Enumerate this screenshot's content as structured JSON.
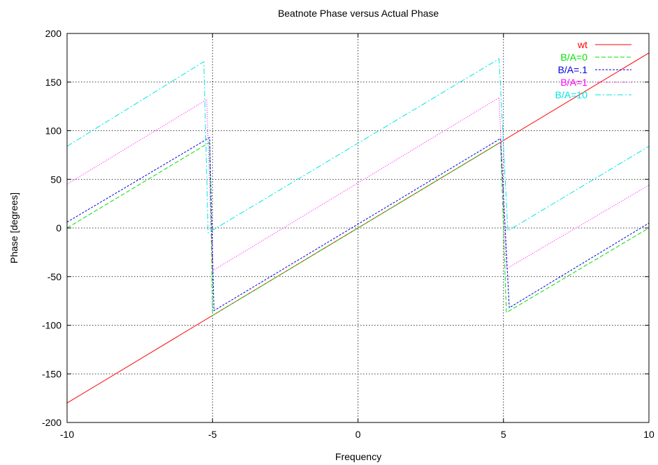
{
  "chart_data": {
    "type": "line",
    "title": "Beatnote Phase versus Actual Phase",
    "xlabel": "Frequency",
    "ylabel": "Phase [degrees]",
    "xlim": [
      -10,
      10
    ],
    "ylim": [
      -200,
      200
    ],
    "xticks": [
      -10,
      -5,
      0,
      5,
      10
    ],
    "yticks": [
      -200,
      -150,
      -100,
      -50,
      0,
      50,
      100,
      150,
      200
    ],
    "grid": true,
    "legend_position": "top-right",
    "series": [
      {
        "name": "wt",
        "color": "#ff0000",
        "dash": "solid",
        "points": [
          [
            -10,
            -180
          ],
          [
            10,
            180
          ]
        ]
      },
      {
        "name": "B/A=0",
        "color": "#00e000",
        "dash": "dashed",
        "points": [
          [
            -10,
            0
          ],
          [
            -5.1,
            88
          ],
          [
            -5.0,
            -90
          ],
          [
            4.9,
            88
          ],
          [
            5.1,
            -87
          ],
          [
            10,
            0
          ]
        ]
      },
      {
        "name": "B/A=.1",
        "color": "#0000e0",
        "dash": "short-dashed",
        "points": [
          [
            -10,
            6
          ],
          [
            -5.1,
            93
          ],
          [
            -4.95,
            -85
          ],
          [
            4.9,
            92
          ],
          [
            5.2,
            -82
          ],
          [
            10,
            5
          ]
        ]
      },
      {
        "name": "B/A=1",
        "color": "#ff00ff",
        "dash": "dotted",
        "points": [
          [
            -10,
            45
          ],
          [
            -5.2,
            132
          ],
          [
            -5.0,
            -44
          ],
          [
            4.85,
            134
          ],
          [
            5.1,
            -42
          ],
          [
            10,
            44
          ]
        ]
      },
      {
        "name": "B/A=10",
        "color": "#00e5e5",
        "dash": "dash-dot",
        "points": [
          [
            -10,
            84
          ],
          [
            -5.3,
            171
          ],
          [
            -5.15,
            -5
          ],
          [
            4.85,
            174
          ],
          [
            5.15,
            -3
          ],
          [
            10,
            84
          ]
        ]
      }
    ]
  }
}
